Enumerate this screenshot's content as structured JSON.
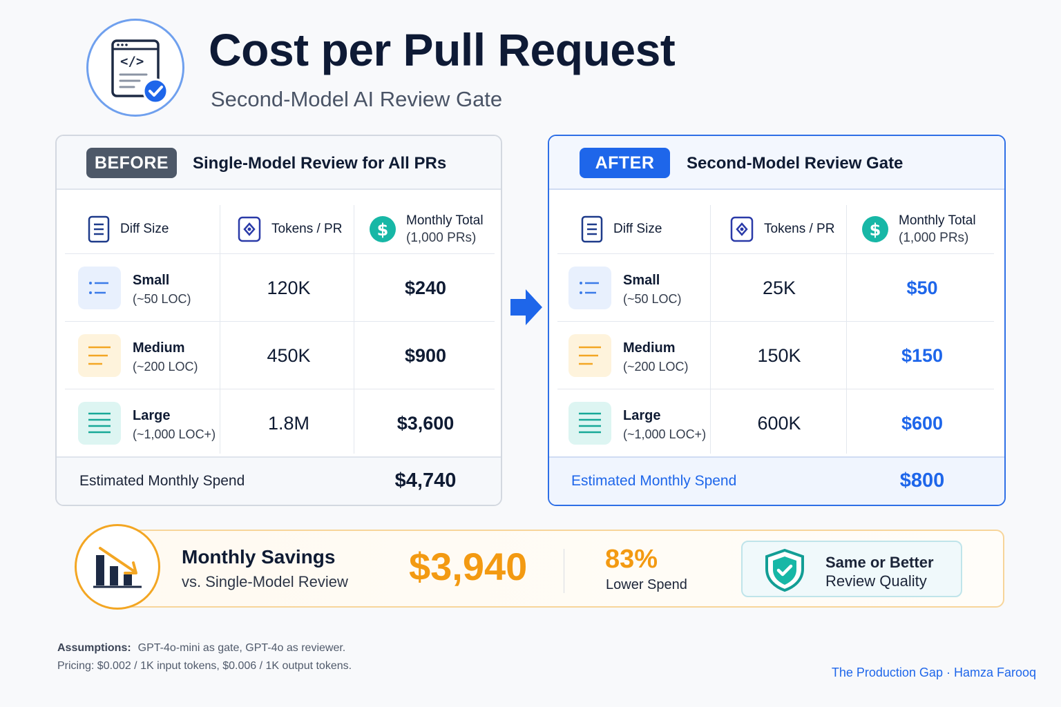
{
  "header": {
    "title": "Cost per Pull Request",
    "subtitle": "Second-Model AI Review Gate"
  },
  "columns": {
    "diff_size": "Diff Size",
    "tokens": "Tokens / PR",
    "monthly_total": "Monthly Total",
    "monthly_total_sub": "(1,000 PRs)"
  },
  "before": {
    "badge": "BEFORE",
    "title": "Single-Model Review for All PRs",
    "rows": [
      {
        "size": "Small",
        "loc": "(~50 LOC)",
        "tokens": "120K",
        "cost": "$240"
      },
      {
        "size": "Medium",
        "loc": "(~200 LOC)",
        "tokens": "450K",
        "cost": "$900"
      },
      {
        "size": "Large",
        "loc": "(~1,000 LOC+)",
        "tokens": "1.8M",
        "cost": "$3,600"
      }
    ],
    "footer_label": "Estimated Monthly Spend",
    "footer_value": "$4,740"
  },
  "after": {
    "badge": "AFTER",
    "title": "Second-Model Review Gate",
    "rows": [
      {
        "size": "Small",
        "loc": "(~50 LOC)",
        "tokens": "25K",
        "cost": "$50"
      },
      {
        "size": "Medium",
        "loc": "(~200 LOC)",
        "tokens": "150K",
        "cost": "$150"
      },
      {
        "size": "Large",
        "loc": "(~1,000 LOC+)",
        "tokens": "600K",
        "cost": "$600"
      }
    ],
    "footer_label": "Estimated Monthly Spend",
    "footer_value": "$800"
  },
  "savings": {
    "title": "Monthly Savings",
    "subtitle": "vs. Single-Model Review",
    "amount": "$3,940",
    "percent": "83%",
    "percent_label": "Lower Spend",
    "quality_line1": "Same or Better",
    "quality_line2": "Review Quality"
  },
  "footer": {
    "assumptions_label": "Assumptions:",
    "assumptions_line1": "GPT-4o-mini as gate, GPT-4o as reviewer.",
    "assumptions_line2": "Pricing: $0.002 / 1K input tokens, $0.006 / 1K output tokens.",
    "credit": "The Production Gap · Hamza Farooq"
  },
  "colors": {
    "accent_blue": "#1e66ea",
    "accent_orange": "#f39a12",
    "badge_gray": "#4d5868"
  },
  "icons": [
    "code-document-check-icon",
    "document-icon",
    "token-icon",
    "dollar-icon",
    "list-small-icon",
    "list-medium-icon",
    "list-large-icon",
    "arrow-right-icon",
    "bar-chart-down-icon",
    "shield-check-icon"
  ]
}
